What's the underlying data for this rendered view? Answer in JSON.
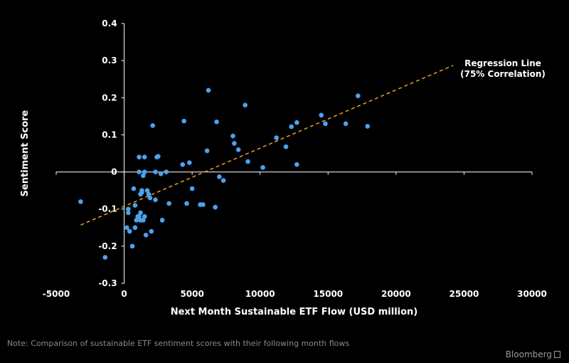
{
  "chart_data": {
    "type": "scatter",
    "xlabel": "Next Month Sustainable ETF Flow (USD million)",
    "ylabel": "Sentiment Score",
    "xlim": [
      -5000,
      30000
    ],
    "ylim": [
      -0.3,
      0.4
    ],
    "x_ticks": [
      -5000,
      0,
      5000,
      10000,
      15000,
      20000,
      25000,
      30000
    ],
    "x_tick_labels": [
      "-5000",
      "0",
      "5000",
      "10000",
      "15000",
      "20000",
      "25000",
      "30000"
    ],
    "y_ticks": [
      0.4,
      0.3,
      0.2,
      0.1,
      0,
      -0.1,
      -0.2,
      -0.3
    ],
    "y_tick_labels": [
      "0.4",
      "0.3",
      "0.2",
      "0.1",
      "0",
      "-0.1",
      "-0.2",
      "-0.3"
    ],
    "grid": false,
    "points": [
      {
        "x": -3200,
        "y": -0.08
      },
      {
        "x": -1400,
        "y": -0.23
      },
      {
        "x": 200,
        "y": -0.15
      },
      {
        "x": 300,
        "y": -0.1
      },
      {
        "x": 300,
        "y": -0.11
      },
      {
        "x": 400,
        "y": -0.16
      },
      {
        "x": 600,
        "y": -0.2
      },
      {
        "x": 700,
        "y": -0.045
      },
      {
        "x": 800,
        "y": -0.15
      },
      {
        "x": 800,
        "y": -0.09
      },
      {
        "x": 900,
        "y": -0.13
      },
      {
        "x": 1000,
        "y": -0.12
      },
      {
        "x": 1100,
        "y": 0.0
      },
      {
        "x": 1100,
        "y": -0.12
      },
      {
        "x": 1100,
        "y": 0.04
      },
      {
        "x": 1200,
        "y": -0.11
      },
      {
        "x": 1200,
        "y": -0.13
      },
      {
        "x": 1200,
        "y": -0.06
      },
      {
        "x": 1300,
        "y": -0.05
      },
      {
        "x": 1300,
        "y": -0.055
      },
      {
        "x": 1400,
        "y": -0.01
      },
      {
        "x": 1400,
        "y": -0.13
      },
      {
        "x": 1500,
        "y": 0.04
      },
      {
        "x": 1500,
        "y": 0.0
      },
      {
        "x": 1500,
        "y": -0.12
      },
      {
        "x": 1600,
        "y": -0.17
      },
      {
        "x": 1700,
        "y": -0.05
      },
      {
        "x": 1800,
        "y": -0.06
      },
      {
        "x": 1900,
        "y": -0.07
      },
      {
        "x": 2000,
        "y": -0.16
      },
      {
        "x": 2100,
        "y": 0.125
      },
      {
        "x": 2300,
        "y": -0.075
      },
      {
        "x": 2300,
        "y": 0.0
      },
      {
        "x": 2400,
        "y": 0.04
      },
      {
        "x": 2500,
        "y": 0.042
      },
      {
        "x": 2700,
        "y": -0.005
      },
      {
        "x": 2800,
        "y": -0.13
      },
      {
        "x": 3100,
        "y": 0.0
      },
      {
        "x": 3300,
        "y": -0.085
      },
      {
        "x": 4300,
        "y": 0.02
      },
      {
        "x": 4400,
        "y": 0.137
      },
      {
        "x": 4600,
        "y": -0.085
      },
      {
        "x": 4800,
        "y": 0.025
      },
      {
        "x": 5000,
        "y": -0.045
      },
      {
        "x": 5600,
        "y": -0.088
      },
      {
        "x": 5800,
        "y": -0.088
      },
      {
        "x": 6100,
        "y": 0.057
      },
      {
        "x": 6200,
        "y": 0.22
      },
      {
        "x": 6700,
        "y": -0.095
      },
      {
        "x": 6800,
        "y": 0.135
      },
      {
        "x": 7000,
        "y": -0.013
      },
      {
        "x": 7300,
        "y": -0.023
      },
      {
        "x": 8000,
        "y": 0.097
      },
      {
        "x": 8100,
        "y": 0.077
      },
      {
        "x": 8400,
        "y": 0.06
      },
      {
        "x": 8900,
        "y": 0.18
      },
      {
        "x": 9100,
        "y": 0.028
      },
      {
        "x": 10200,
        "y": 0.012
      },
      {
        "x": 11200,
        "y": 0.092
      },
      {
        "x": 11900,
        "y": 0.068
      },
      {
        "x": 12300,
        "y": 0.122
      },
      {
        "x": 12700,
        "y": 0.133
      },
      {
        "x": 12700,
        "y": 0.02
      },
      {
        "x": 14500,
        "y": 0.153
      },
      {
        "x": 14800,
        "y": 0.13
      },
      {
        "x": 16300,
        "y": 0.13
      },
      {
        "x": 17200,
        "y": 0.205
      },
      {
        "x": 17900,
        "y": 0.123
      }
    ],
    "regression": {
      "x1": -3200,
      "y1": -0.143,
      "x2": 24200,
      "y2": 0.287
    },
    "annotation": {
      "line1": "Regression Line",
      "line2": "(75% Correlation)"
    },
    "colors": {
      "points": "#4aa3f0",
      "regression": "#f0a020",
      "axis": "#ffffff",
      "text": "#ffffff",
      "background": "#000000"
    }
  },
  "footer": {
    "note": "Note: Comparison of sustainable ETF sentiment scores with their following month flows",
    "brand": "Bloomberg"
  }
}
